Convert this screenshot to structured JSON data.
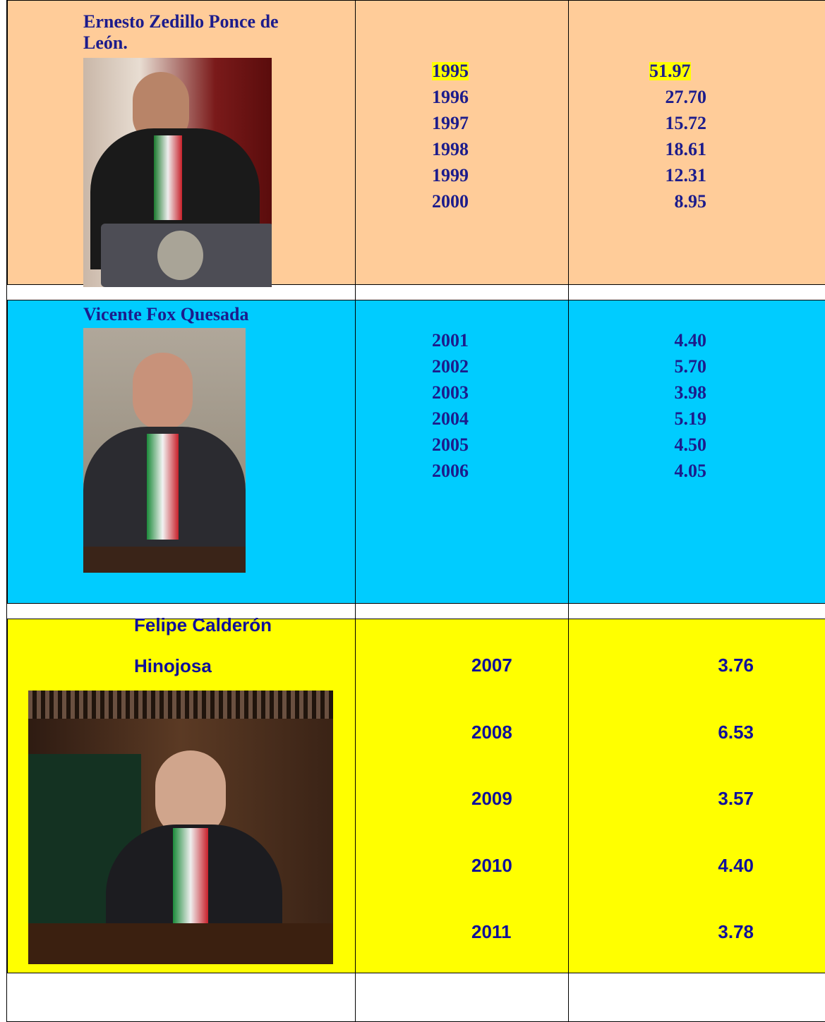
{
  "sections": [
    {
      "name_lines": [
        "Ernesto Zedillo Ponce de",
        "León."
      ],
      "years": [
        "1995",
        "1996",
        "1997",
        "1998",
        "1999",
        "2000"
      ],
      "values": [
        "51.97",
        "27.70",
        "15.72",
        "18.61",
        "12.31",
        "8.95"
      ]
    },
    {
      "name_lines": [
        "Vicente Fox Quesada"
      ],
      "years": [
        "2001",
        "2002",
        "2003",
        "2004",
        "2005",
        "2006"
      ],
      "values": [
        "4.40",
        "5.70",
        "3.98",
        "5.19",
        "4.50",
        "4.05"
      ]
    },
    {
      "name_lines": [
        "Felipe Calderón",
        "Hinojosa"
      ],
      "years": [
        "2007",
        "2008",
        "2009",
        "2010",
        "2011"
      ],
      "values": [
        "3.76",
        "6.53",
        "3.57",
        "4.40",
        "3.78"
      ]
    }
  ]
}
